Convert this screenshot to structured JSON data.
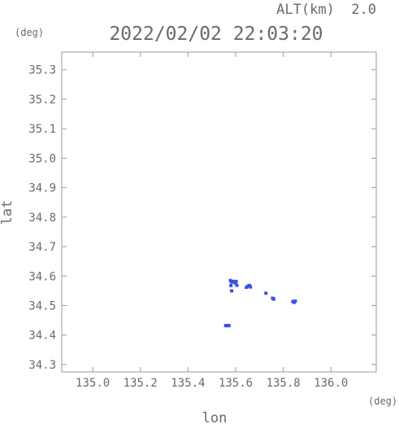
{
  "header": {
    "altitude_label": "ALT(km)  2.0",
    "timestamp": "2022/02/02 22:03:20"
  },
  "chart_data": {
    "type": "scatter",
    "title": "2022/02/02 22:03:20",
    "subtitle": "ALT(km)  2.0",
    "xlabel": "lon",
    "ylabel": "lat",
    "x_unit": "(deg)",
    "y_unit": "(deg)",
    "xlim": [
      134.87,
      136.19
    ],
    "ylim": [
      34.275,
      35.36
    ],
    "x_ticks": [
      135.0,
      135.2,
      135.4,
      135.6,
      135.8,
      136.0
    ],
    "x_tick_labels": [
      "135.0",
      "135.2",
      "135.4",
      "135.6",
      "135.8",
      "136.0"
    ],
    "y_ticks": [
      34.3,
      34.4,
      34.5,
      34.6,
      34.7,
      34.8,
      34.9,
      35.0,
      35.1,
      35.2,
      35.3
    ],
    "y_tick_labels": [
      "34.3",
      "34.4",
      "34.5",
      "34.6",
      "34.7",
      "34.8",
      "34.9",
      "35.0",
      "35.1",
      "35.2",
      "35.3"
    ],
    "grid": false,
    "marker_color": "#3b4fe8",
    "series": [
      {
        "points": [
          [
            135.565,
            34.432
          ],
          [
            135.558,
            34.432
          ],
          [
            135.572,
            34.432
          ],
          [
            135.578,
            34.585
          ],
          [
            135.583,
            34.58
          ],
          [
            135.59,
            34.582
          ],
          [
            135.597,
            34.577
          ],
          [
            135.602,
            34.582
          ],
          [
            135.605,
            34.569
          ],
          [
            135.58,
            34.568
          ],
          [
            135.583,
            34.55
          ],
          [
            135.645,
            34.562
          ],
          [
            135.652,
            34.566
          ],
          [
            135.658,
            34.568
          ],
          [
            135.662,
            34.563
          ],
          [
            135.727,
            34.542
          ],
          [
            135.755,
            34.525
          ],
          [
            135.76,
            34.522
          ],
          [
            135.84,
            34.514
          ],
          [
            135.845,
            34.511
          ],
          [
            135.85,
            34.515
          ]
        ]
      }
    ]
  }
}
